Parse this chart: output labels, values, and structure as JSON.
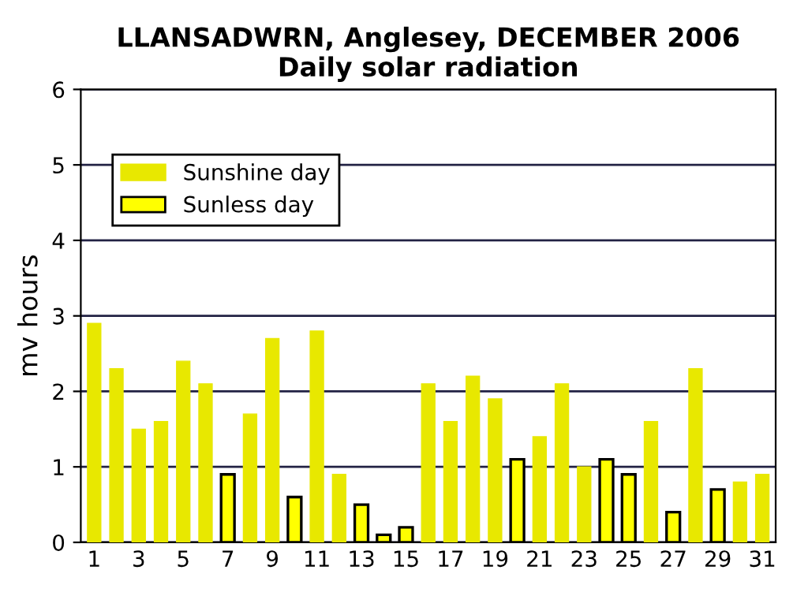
{
  "chart_data": {
    "type": "bar",
    "title": "LLANSADWRN, Anglesey, DECEMBER 2006\nDaily solar radiation",
    "ylabel": "mv hours",
    "categories": [
      "1",
      null,
      "3",
      null,
      "5",
      null,
      "7",
      null,
      "9",
      null,
      "11",
      null,
      "13",
      null,
      "15",
      null,
      "17",
      null,
      "19",
      null,
      "21",
      null,
      "23",
      null,
      "25",
      null,
      "27",
      null,
      "29",
      null,
      "31"
    ],
    "series": [
      {
        "name": "Sunshine day",
        "color": "#e8e800",
        "values": [
          2.9,
          2.3,
          1.5,
          1.6,
          2.4,
          2.1,
          null,
          1.7,
          2.7,
          null,
          2.8,
          0.9,
          null,
          null,
          null,
          2.1,
          1.6,
          2.2,
          1.9,
          null,
          1.4,
          2.1,
          1.0,
          null,
          null,
          1.6,
          null,
          2.3,
          null,
          0.8,
          0.9
        ]
      },
      {
        "name": "Sunless day",
        "color": "#ffff00",
        "values": [
          null,
          null,
          null,
          null,
          null,
          null,
          0.9,
          null,
          null,
          0.6,
          null,
          null,
          0.5,
          0.1,
          0.2,
          null,
          null,
          null,
          null,
          1.1,
          null,
          null,
          null,
          1.1,
          0.9,
          null,
          0.4,
          null,
          0.7,
          null,
          null
        ]
      }
    ],
    "ylim": [
      0,
      6
    ],
    "yticks": [
      0,
      1,
      2,
      3,
      4,
      5,
      6
    ],
    "grid": "y",
    "legend": "top left"
  }
}
